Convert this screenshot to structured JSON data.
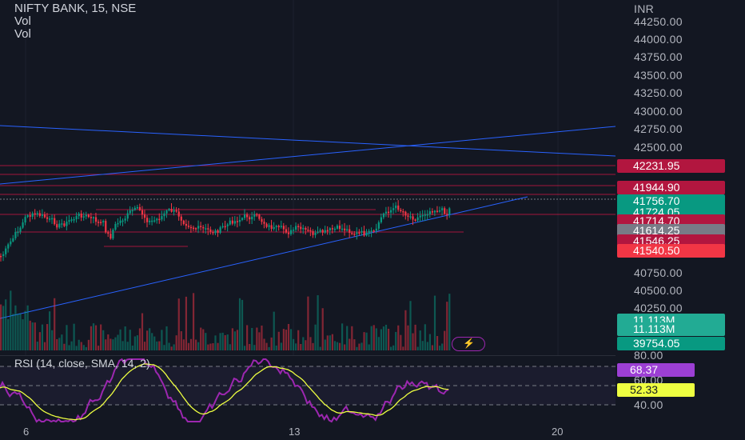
{
  "legend": {
    "symbol_line": "NIFTY BANK, 15, NSE",
    "vol_1": "Vol",
    "vol_2": "Vol"
  },
  "price_axis": {
    "currency": "INR",
    "ticks": [
      "44250.00",
      "44000.00",
      "43750.00",
      "43500.00",
      "43250.00",
      "43000.00",
      "42750.00",
      "42500.00",
      "40750.00",
      "40500.00",
      "40250.00"
    ]
  },
  "price_tags": [
    {
      "label": "42231.95",
      "color": "#b2163f"
    },
    {
      "label": "41944.90",
      "color": "#b2163f"
    },
    {
      "label": "41756.70",
      "color": "#089981"
    },
    {
      "label": "41724.05",
      "color": "#089981"
    },
    {
      "label": "41714.70",
      "color": "#b2163f"
    },
    {
      "label": "41614.25",
      "color": "#787b86"
    },
    {
      "label": "41546.25",
      "color": "#b2163f"
    },
    {
      "label": "41540.50",
      "color": "#f23645"
    }
  ],
  "volume_tags": [
    {
      "label": "11.113M",
      "color": "#22ab94"
    },
    {
      "label": "11.113M",
      "color": "#22ab94"
    }
  ],
  "extra_tags": [
    {
      "label": "39754.05",
      "color": "#089981"
    }
  ],
  "rsi": {
    "label": "RSI (14, close, SMA, 14, 2)",
    "ticks": [
      "80.00",
      "60.00",
      "40.00"
    ],
    "value_tag": {
      "label": "68.37",
      "color": "#9c3fd4"
    },
    "sma_tag": {
      "label": "52.33",
      "color": "#eeff41"
    }
  },
  "time_axis": {
    "ticks": [
      "6",
      "13",
      "20"
    ]
  },
  "colors": {
    "background": "#131722",
    "up": "#089981",
    "down": "#f23645",
    "trendline": "#2962ff",
    "level": "#b2163f",
    "rsi_line": "#9c27b0",
    "rsi_sma": "#eeff41"
  },
  "icons": {
    "flash": "lightning-icon"
  }
}
